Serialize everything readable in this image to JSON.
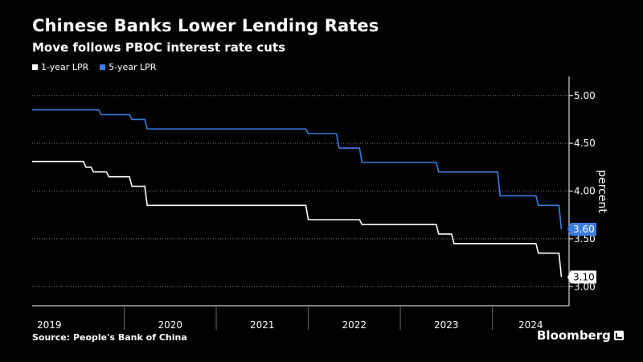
{
  "chart_data": {
    "type": "line",
    "title": "Chinese Banks Lower Lending Rates",
    "subtitle": "Move follows PBOC interest rate cuts",
    "ylabel": "percent",
    "xlabel": "",
    "ylim": [
      2.8,
      5.2
    ],
    "y_ticks": [
      "5.00",
      "4.50",
      "4.00",
      "3.50",
      "3.00"
    ],
    "x_ticks": [
      "2019",
      "2020",
      "2021",
      "2022",
      "2023",
      "2024"
    ],
    "x_range": [
      "2019-01",
      "2024-11"
    ],
    "grid": "horizontal dotted",
    "legend_position": "top-left",
    "source": "Source: People's Bank of China",
    "brand": "Bloomberg",
    "series": [
      {
        "name": "1-year LPR",
        "color": "#ffffff",
        "end_label": "3.10",
        "points": [
          [
            "2019-01",
            4.31
          ],
          [
            "2019-08",
            4.25
          ],
          [
            "2019-09",
            4.2
          ],
          [
            "2019-11",
            4.15
          ],
          [
            "2020-02",
            4.05
          ],
          [
            "2020-04",
            3.85
          ],
          [
            "2022-01",
            3.7
          ],
          [
            "2022-08",
            3.65
          ],
          [
            "2023-06",
            3.55
          ],
          [
            "2023-08",
            3.45
          ],
          [
            "2024-07",
            3.35
          ],
          [
            "2024-10",
            3.1
          ]
        ]
      },
      {
        "name": "5-year LPR",
        "color": "#3b7de0",
        "end_label": "3.60",
        "points": [
          [
            "2019-01",
            4.85
          ],
          [
            "2019-10",
            4.8
          ],
          [
            "2020-02",
            4.75
          ],
          [
            "2020-04",
            4.65
          ],
          [
            "2022-01",
            4.6
          ],
          [
            "2022-05",
            4.45
          ],
          [
            "2022-08",
            4.3
          ],
          [
            "2023-06",
            4.2
          ],
          [
            "2024-02",
            3.95
          ],
          [
            "2024-07",
            3.85
          ],
          [
            "2024-10",
            3.6
          ]
        ]
      }
    ]
  }
}
